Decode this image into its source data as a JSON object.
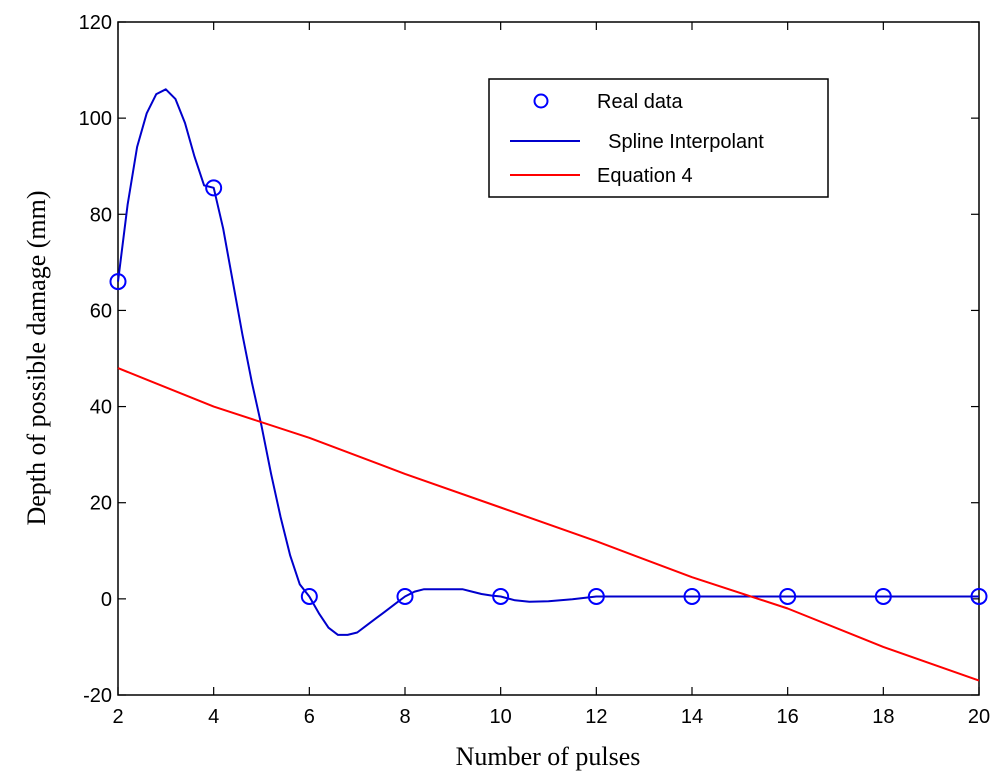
{
  "chart_data": {
    "type": "line",
    "xlabel": "Number of pulses",
    "ylabel": "Depth of  possible damage (mm)",
    "xlim": [
      2,
      20
    ],
    "ylim": [
      -20,
      120
    ],
    "xticks": [
      2,
      4,
      6,
      8,
      10,
      12,
      14,
      16,
      18,
      20
    ],
    "yticks": [
      -20,
      0,
      20,
      40,
      60,
      80,
      100,
      120
    ],
    "x_tick_labels": [
      "2",
      "4",
      "6",
      "8",
      "10",
      "12",
      "14",
      "16",
      "18",
      "20"
    ],
    "y_tick_labels": [
      "-20",
      "0",
      "20",
      "40",
      "60",
      "80",
      "100",
      "120"
    ],
    "grid": false,
    "legend_position": "top-right",
    "series": [
      {
        "name": "Real data",
        "style": "markers",
        "marker": "circle",
        "color": "#0000ff",
        "x": [
          2,
          4,
          6,
          8,
          10,
          12,
          14,
          16,
          18,
          20
        ],
        "y": [
          66,
          85.5,
          0.5,
          0.5,
          0.5,
          0.5,
          0.5,
          0.5,
          0.5,
          0.5
        ]
      },
      {
        "name": "Spline Interpolant",
        "style": "line",
        "color": "#0000cc",
        "x": [
          2,
          2.2,
          2.4,
          2.6,
          2.8,
          3.0,
          3.2,
          3.4,
          3.6,
          3.8,
          4.0,
          4.2,
          4.4,
          4.6,
          4.8,
          5.0,
          5.2,
          5.4,
          5.6,
          5.8,
          6.0,
          6.2,
          6.4,
          6.6,
          6.8,
          7.0,
          7.2,
          7.4,
          7.6,
          7.8,
          8.0,
          8.2,
          8.4,
          8.6,
          8.8,
          9.0,
          9.2,
          9.4,
          9.6,
          9.8,
          10.0,
          10.3,
          10.6,
          11.0,
          11.5,
          12.0,
          13.0,
          14.0,
          15.0,
          16.0,
          17.0,
          18.0,
          19.0,
          20.0
        ],
        "y": [
          66,
          82,
          94,
          101,
          105,
          106,
          104,
          99,
          92,
          86,
          85.5,
          77,
          66,
          55,
          45,
          36,
          26,
          17,
          9,
          3,
          0.5,
          -3,
          -6,
          -7.5,
          -7.5,
          -7,
          -5.5,
          -4,
          -2.5,
          -1,
          0.5,
          1.5,
          2,
          2,
          2,
          2,
          2,
          1.5,
          1,
          0.7,
          0.5,
          -0.3,
          -0.6,
          -0.5,
          -0.1,
          0.5,
          0.5,
          0.5,
          0.5,
          0.5,
          0.5,
          0.5,
          0.5,
          0.5
        ]
      },
      {
        "name": "Equation 4",
        "style": "line",
        "color": "#ff0000",
        "x": [
          2,
          4,
          6,
          8,
          10,
          12,
          14,
          16,
          18,
          20
        ],
        "y": [
          48,
          40,
          33.5,
          26,
          19,
          12,
          4.5,
          -2,
          -10,
          -17
        ]
      }
    ]
  },
  "legend": {
    "entries": [
      "Real data",
      "  Spline Interpolant",
      "Equation 4"
    ]
  }
}
